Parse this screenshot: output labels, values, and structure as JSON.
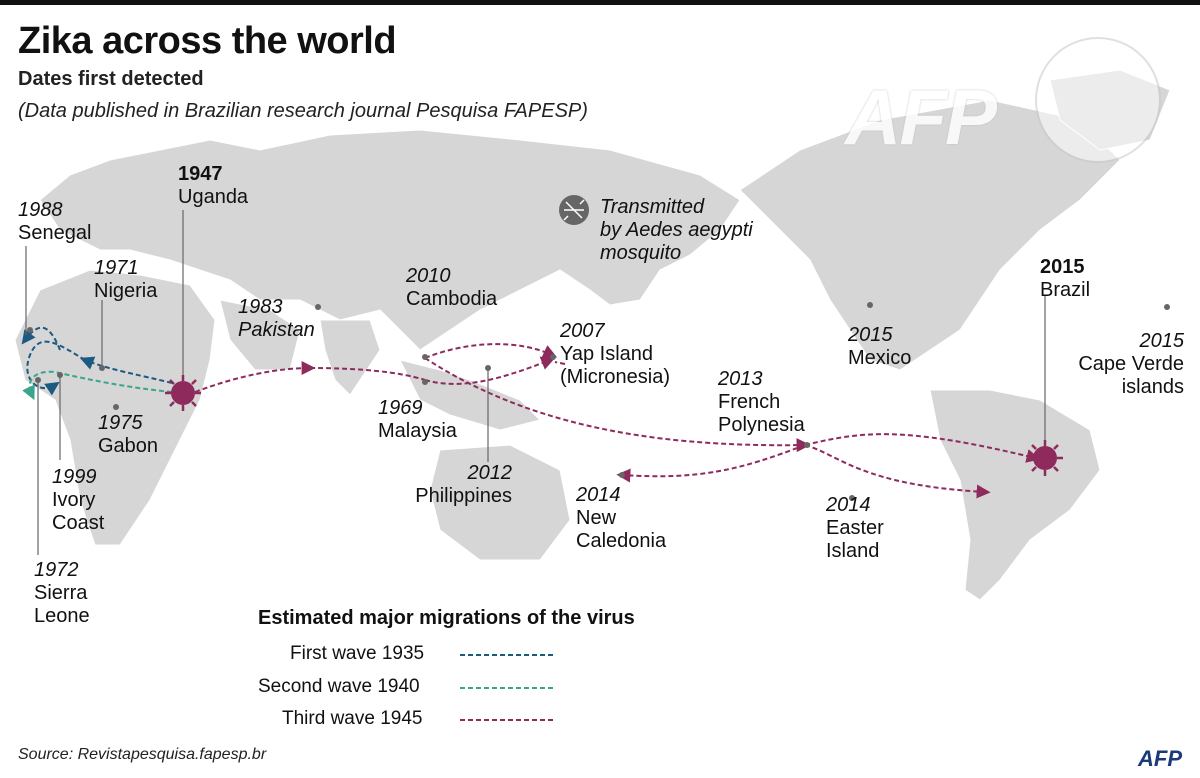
{
  "title": "Zika across the world",
  "subtitle": "Dates first detected",
  "note": "(Data published in Brazilian research journal Pesquisa FAPESP)",
  "colors": {
    "land": "#d6d6d6",
    "first_wave": "#1d5a82",
    "second_wave": "#3aa58c",
    "third_wave": "#8e2a5c",
    "dot": "#666666"
  },
  "mosquito_note": {
    "icon": "mosquito-icon",
    "line1": "Transmitted",
    "line2": "by Aedes aegypti",
    "line3": "mosquito"
  },
  "places": [
    {
      "id": "uganda",
      "year": "1947",
      "name": "Uganda",
      "origin": true
    },
    {
      "id": "senegal",
      "year": "1988",
      "name": "Senegal"
    },
    {
      "id": "nigeria",
      "year": "1971",
      "name": "Nigeria"
    },
    {
      "id": "pakistan",
      "year": "1983",
      "name": "Pakistan",
      "italic": true
    },
    {
      "id": "cambodia",
      "year": "2010",
      "name": "Cambodia"
    },
    {
      "id": "yap",
      "year": "2007",
      "name": "Yap Island",
      "name2": "(Micronesia)"
    },
    {
      "id": "gabon",
      "year": "1975",
      "name": "Gabon"
    },
    {
      "id": "malaysia",
      "year": "1969",
      "name": "Malaysia"
    },
    {
      "id": "philippines",
      "year": "2012",
      "name": "Philippines"
    },
    {
      "id": "ivory",
      "year": "1999",
      "name": "Ivory",
      "name2": "Coast"
    },
    {
      "id": "sierra",
      "year": "1972",
      "name": "Sierra",
      "name2": "Leone"
    },
    {
      "id": "newcal",
      "year": "2014",
      "name": "New",
      "name2": "Caledonia"
    },
    {
      "id": "frenchpoly",
      "year": "2013",
      "name": "French",
      "name2": "Polynesia"
    },
    {
      "id": "easter",
      "year": "2014",
      "name": "Easter",
      "name2": "Island"
    },
    {
      "id": "mexico",
      "year": "2015",
      "name": "Mexico"
    },
    {
      "id": "brazil",
      "year": "2015",
      "name": "Brazil",
      "origin": true
    },
    {
      "id": "capeverde",
      "year": "2015",
      "name": "Cape Verde",
      "name2": "islands"
    }
  ],
  "legend": {
    "title": "Estimated major migrations of the virus",
    "items": [
      {
        "label": "First wave 1935",
        "color_key": "first_wave"
      },
      {
        "label": "Second wave 1940",
        "color_key": "second_wave"
      },
      {
        "label": "Third wave 1945",
        "color_key": "third_wave"
      }
    ]
  },
  "source": "Source: Revistapesquisa.fapesp.br",
  "watermark": "AFP",
  "logo": "AFP"
}
